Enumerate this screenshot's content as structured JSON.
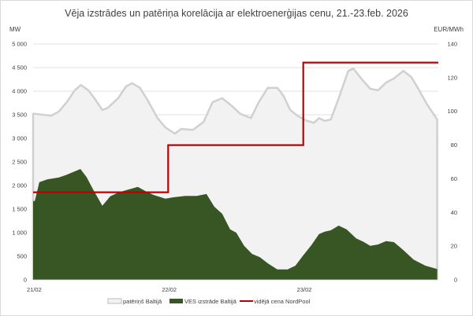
{
  "chart_data": {
    "type": "area+line",
    "title": "Vēja izstrādes un patēriņa korelācija ar elektroenerģijas cenu, 21.-23.feb. 2026",
    "ylabel_left": "MW",
    "ylabel_right": "EUR/MWh",
    "ylim_left": [
      0,
      5000
    ],
    "ylim_right": [
      0,
      140
    ],
    "yticks_left": [
      "0",
      "500",
      "1 000",
      "1 500",
      "2 000",
      "2 500",
      "3 000",
      "3 500",
      "4 000",
      "4 500",
      "5 000"
    ],
    "yticks_right": [
      "0",
      "20",
      "40",
      "60",
      "80",
      "100",
      "120",
      "140"
    ],
    "x_unit": "hours since 21/02 00:00",
    "xlim": [
      0,
      72
    ],
    "xticks": [
      {
        "hour": 0,
        "label": "21/02"
      },
      {
        "hour": 24,
        "label": "22/02"
      },
      {
        "hour": 48,
        "label": "23/02"
      }
    ],
    "grid": true,
    "legend_position": "bottom",
    "series": [
      {
        "name": "patēriņš Baltijā",
        "type": "area",
        "axis": "left",
        "color": "#d0d0d0",
        "fill": "#f2f2f2",
        "points": [
          [
            0,
            3520
          ],
          [
            0.3,
            3520
          ],
          [
            3.2,
            3480
          ],
          [
            4.6,
            3570
          ],
          [
            6,
            3770
          ],
          [
            7.4,
            4020
          ],
          [
            8.5,
            4130
          ],
          [
            9.8,
            4020
          ],
          [
            10.9,
            3850
          ],
          [
            12.3,
            3600
          ],
          [
            13.3,
            3650
          ],
          [
            15.1,
            3850
          ],
          [
            16.5,
            4100
          ],
          [
            17.6,
            4170
          ],
          [
            19,
            4070
          ],
          [
            20.4,
            3800
          ],
          [
            22.1,
            3430
          ],
          [
            23.5,
            3230
          ],
          [
            25.2,
            3100
          ],
          [
            26.3,
            3200
          ],
          [
            28.4,
            3180
          ],
          [
            30.3,
            3350
          ],
          [
            31.9,
            3770
          ],
          [
            33.6,
            3850
          ],
          [
            35.4,
            3680
          ],
          [
            36.8,
            3520
          ],
          [
            38.7,
            3430
          ],
          [
            40.1,
            3770
          ],
          [
            41.7,
            4070
          ],
          [
            43.4,
            4070
          ],
          [
            44.5,
            3900
          ],
          [
            45.7,
            3600
          ],
          [
            47.1,
            3470
          ],
          [
            48.5,
            3380
          ],
          [
            49.9,
            3330
          ],
          [
            50.8,
            3430
          ],
          [
            51.8,
            3370
          ],
          [
            52.9,
            3400
          ],
          [
            54.3,
            3850
          ],
          [
            56,
            4430
          ],
          [
            56.9,
            4480
          ],
          [
            58.3,
            4270
          ],
          [
            59.9,
            4050
          ],
          [
            61.3,
            4020
          ],
          [
            62.7,
            4180
          ],
          [
            64.1,
            4270
          ],
          [
            65.8,
            4430
          ],
          [
            67.2,
            4300
          ],
          [
            68.6,
            4020
          ],
          [
            70,
            3720
          ],
          [
            71.8,
            3400
          ]
        ]
      },
      {
        "name": "VES izstrāde Baltijā",
        "type": "area",
        "axis": "left",
        "color": "#375623",
        "points": [
          [
            0,
            1670
          ],
          [
            0.3,
            1670
          ],
          [
            1.1,
            2070
          ],
          [
            2.5,
            2130
          ],
          [
            4.6,
            2170
          ],
          [
            6,
            2230
          ],
          [
            7.4,
            2300
          ],
          [
            8.4,
            2350
          ],
          [
            9.5,
            2180
          ],
          [
            10.6,
            1930
          ],
          [
            12.3,
            1570
          ],
          [
            13.7,
            1770
          ],
          [
            15.1,
            1850
          ],
          [
            16.5,
            1900
          ],
          [
            18.6,
            1970
          ],
          [
            20,
            1880
          ],
          [
            21.4,
            1800
          ],
          [
            23.5,
            1720
          ],
          [
            24.9,
            1750
          ],
          [
            27,
            1780
          ],
          [
            29.1,
            1780
          ],
          [
            30.8,
            1820
          ],
          [
            32.2,
            1550
          ],
          [
            33.6,
            1400
          ],
          [
            35,
            1070
          ],
          [
            36.1,
            1000
          ],
          [
            37.5,
            720
          ],
          [
            38.9,
            550
          ],
          [
            40.3,
            480
          ],
          [
            41.7,
            350
          ],
          [
            43.4,
            220
          ],
          [
            45.2,
            220
          ],
          [
            46.6,
            300
          ],
          [
            48,
            520
          ],
          [
            49.4,
            730
          ],
          [
            50.8,
            970
          ],
          [
            51.8,
            1020
          ],
          [
            52.9,
            1050
          ],
          [
            54.3,
            1150
          ],
          [
            55.7,
            1070
          ],
          [
            57.4,
            880
          ],
          [
            58.8,
            800
          ],
          [
            59.9,
            720
          ],
          [
            61.3,
            750
          ],
          [
            62.7,
            820
          ],
          [
            64.1,
            800
          ],
          [
            65.8,
            630
          ],
          [
            67.6,
            430
          ],
          [
            69.7,
            300
          ],
          [
            71.8,
            230
          ]
        ]
      },
      {
        "name": "vidējā cena NordPool",
        "type": "step-line",
        "axis": "right",
        "color": "#c00000",
        "points": [
          [
            0,
            52
          ],
          [
            24,
            52
          ],
          [
            24,
            80
          ],
          [
            48,
            80
          ],
          [
            48,
            129
          ],
          [
            72,
            129
          ]
        ]
      }
    ]
  }
}
